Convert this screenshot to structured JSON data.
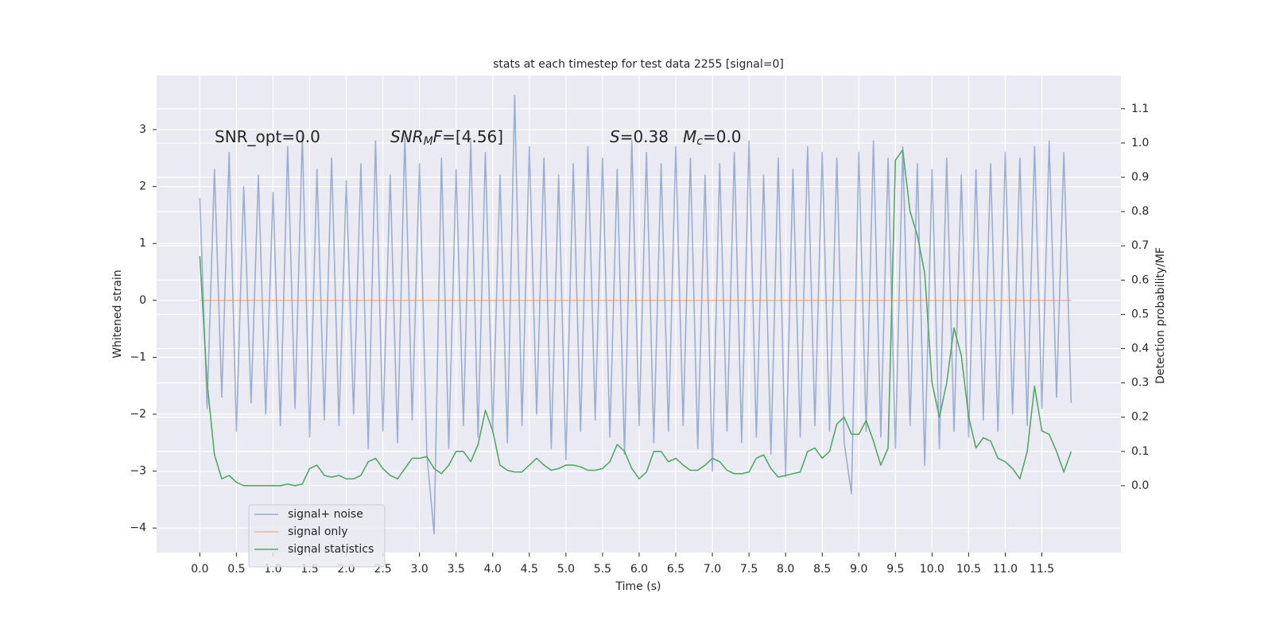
{
  "chart_data": {
    "type": "line",
    "title": "stats at each timestep for test data 2255 [signal=0]",
    "xlabel": "Time (s)",
    "ylabel": "Whitened strain",
    "y2label": "Detection probability/MF",
    "annotations": [
      [
        {
          "text": "SNR_opt=0.0"
        }
      ],
      [
        {
          "text": "SNR",
          "italic": true
        },
        {
          "text": "M",
          "italic": true,
          "sub": true
        },
        {
          "text": "F",
          "italic": true
        },
        {
          "text": "=[4.56]"
        }
      ],
      [
        {
          "text": "S",
          "italic": true
        },
        {
          "text": "=0.38"
        }
      ],
      [
        {
          "text": "M",
          "italic": true
        },
        {
          "text": "c",
          "italic": true,
          "sub": true
        },
        {
          "text": "=0.0"
        }
      ]
    ],
    "x": [
      0.0,
      0.1,
      0.2,
      0.3,
      0.4,
      0.5,
      0.6,
      0.7,
      0.8,
      0.9,
      1.0,
      1.1,
      1.2,
      1.3,
      1.4,
      1.5,
      1.6,
      1.7,
      1.8,
      1.9,
      2.0,
      2.1,
      2.2,
      2.3,
      2.4,
      2.5,
      2.6,
      2.7,
      2.8,
      2.9,
      3.0,
      3.1,
      3.2,
      3.3,
      3.4,
      3.5,
      3.6,
      3.7,
      3.8,
      3.9,
      4.0,
      4.1,
      4.2,
      4.3,
      4.4,
      4.5,
      4.6,
      4.7,
      4.8,
      4.9,
      5.0,
      5.1,
      5.2,
      5.3,
      5.4,
      5.5,
      5.6,
      5.7,
      5.8,
      5.9,
      6.0,
      6.1,
      6.2,
      6.3,
      6.4,
      6.5,
      6.6,
      6.7,
      6.8,
      6.9,
      7.0,
      7.1,
      7.2,
      7.3,
      7.4,
      7.5,
      7.6,
      7.7,
      7.8,
      7.9,
      8.0,
      8.1,
      8.2,
      8.3,
      8.4,
      8.5,
      8.6,
      8.7,
      8.8,
      8.9,
      9.0,
      9.1,
      9.2,
      9.3,
      9.4,
      9.5,
      9.6,
      9.7,
      9.8,
      9.9,
      10.0,
      10.1,
      10.2,
      10.3,
      10.4,
      10.5,
      10.6,
      10.7,
      10.8,
      10.9,
      11.0,
      11.1,
      11.2,
      11.3,
      11.4,
      11.5,
      11.6,
      11.7,
      11.8,
      11.9
    ],
    "series": [
      {
        "name": "signal+ noise",
        "color": "#4c72b0",
        "opacity": 0.5,
        "axis": "y",
        "values": [
          1.8,
          -1.9,
          2.3,
          -1.7,
          2.6,
          -2.3,
          2.0,
          -1.8,
          2.2,
          -2.0,
          1.9,
          -2.2,
          2.7,
          -1.9,
          2.9,
          -2.4,
          2.3,
          -2.1,
          2.5,
          -2.2,
          2.1,
          -2.0,
          2.4,
          -2.6,
          2.8,
          -2.3,
          2.2,
          -2.5,
          2.9,
          -2.1,
          2.4,
          -2.7,
          -4.1,
          2.5,
          -2.6,
          2.3,
          -2.2,
          2.8,
          -2.4,
          2.6,
          -2.3,
          2.2,
          -2.5,
          3.6,
          -2.2,
          2.7,
          -2.0,
          2.5,
          -2.6,
          2.2,
          -2.8,
          2.4,
          -2.3,
          2.7,
          -2.1,
          2.5,
          -2.4,
          2.3,
          -2.7,
          2.8,
          -2.2,
          2.6,
          -2.5,
          2.4,
          -2.3,
          2.7,
          -2.2,
          2.5,
          -2.6,
          2.2,
          -3.0,
          2.4,
          -2.3,
          2.6,
          -2.5,
          2.8,
          -2.4,
          2.2,
          -2.7,
          2.5,
          -3.1,
          2.3,
          -2.4,
          2.7,
          -2.2,
          2.6,
          -2.3,
          2.5,
          -2.5,
          -3.4,
          2.6,
          -2.3,
          2.8,
          -2.4,
          2.5,
          -2.6,
          2.7,
          -2.2,
          2.4,
          -2.9,
          2.3,
          -2.6,
          2.5,
          -2.3,
          2.2,
          -2.4,
          2.3,
          -2.1,
          2.4,
          -2.3,
          2.6,
          -2.0,
          2.5,
          -2.2,
          2.7,
          -1.9,
          2.8,
          -1.7,
          2.6,
          -1.8
        ]
      },
      {
        "name": "signal only",
        "color": "#dd8452",
        "opacity": 0.5,
        "axis": "y",
        "values": [
          0,
          0,
          0,
          0,
          0,
          0,
          0,
          0,
          0,
          0,
          0,
          0,
          0,
          0,
          0,
          0,
          0,
          0,
          0,
          0,
          0,
          0,
          0,
          0,
          0,
          0,
          0,
          0,
          0,
          0,
          0,
          0,
          0,
          0,
          0,
          0,
          0,
          0,
          0,
          0,
          0,
          0,
          0,
          0,
          0,
          0,
          0,
          0,
          0,
          0,
          0,
          0,
          0,
          0,
          0,
          0,
          0,
          0,
          0,
          0,
          0,
          0,
          0,
          0,
          0,
          0,
          0,
          0,
          0,
          0,
          0,
          0,
          0,
          0,
          0,
          0,
          0,
          0,
          0,
          0,
          0,
          0,
          0,
          0,
          0,
          0,
          0,
          0,
          0,
          0,
          0,
          0,
          0,
          0,
          0,
          0,
          0,
          0,
          0,
          0,
          0,
          0,
          0,
          0,
          0,
          0,
          0,
          0,
          0,
          0,
          0,
          0,
          0,
          0,
          0,
          0,
          0,
          0,
          0,
          0
        ]
      },
      {
        "name": "signal statistics",
        "color": "#55a868",
        "opacity": 1,
        "axis": "y2",
        "values": [
          0.67,
          0.3,
          0.09,
          0.02,
          0.03,
          0.01,
          0.0,
          0.0,
          0.0,
          0.0,
          0.0,
          0.0,
          0.005,
          0.0,
          0.005,
          0.05,
          0.06,
          0.03,
          0.025,
          0.03,
          0.02,
          0.02,
          0.03,
          0.07,
          0.08,
          0.05,
          0.03,
          0.02,
          0.05,
          0.08,
          0.08,
          0.085,
          0.05,
          0.035,
          0.06,
          0.1,
          0.1,
          0.07,
          0.12,
          0.22,
          0.16,
          0.06,
          0.045,
          0.04,
          0.04,
          0.06,
          0.08,
          0.06,
          0.045,
          0.05,
          0.06,
          0.06,
          0.055,
          0.045,
          0.045,
          0.05,
          0.07,
          0.12,
          0.1,
          0.05,
          0.02,
          0.04,
          0.1,
          0.1,
          0.07,
          0.08,
          0.06,
          0.045,
          0.045,
          0.06,
          0.08,
          0.07,
          0.045,
          0.035,
          0.035,
          0.04,
          0.08,
          0.09,
          0.05,
          0.025,
          0.03,
          0.035,
          0.04,
          0.1,
          0.11,
          0.08,
          0.1,
          0.18,
          0.2,
          0.15,
          0.15,
          0.19,
          0.13,
          0.06,
          0.11,
          0.95,
          0.98,
          0.8,
          0.73,
          0.62,
          0.3,
          0.2,
          0.3,
          0.46,
          0.38,
          0.2,
          0.11,
          0.14,
          0.13,
          0.08,
          0.07,
          0.05,
          0.02,
          0.1,
          0.29,
          0.16,
          0.15,
          0.1,
          0.04,
          0.1
        ]
      }
    ],
    "xlim": [
      -0.59,
      12.58
    ],
    "ylim": [
      -4.43,
      3.95
    ],
    "y2lim": [
      -0.195,
      1.197
    ],
    "xticks": [
      {
        "value": 0,
        "label": "0.0"
      },
      0.5,
      {
        "value": 1,
        "label": "1.0"
      },
      1.5,
      {
        "value": 2,
        "label": "2.0"
      },
      2.5,
      {
        "value": 3,
        "label": "3.0"
      },
      3.5,
      {
        "value": 4,
        "label": "4.0"
      },
      4.5,
      {
        "value": 5,
        "label": "5.0"
      },
      5.5,
      {
        "value": 6,
        "label": "6.0"
      },
      6.5,
      {
        "value": 7,
        "label": "7.0"
      },
      7.5,
      {
        "value": 8,
        "label": "8.0"
      },
      8.5,
      {
        "value": 9,
        "label": "9.0"
      },
      9.5,
      {
        "value": 10,
        "label": "10.0"
      },
      10.5,
      {
        "value": 11,
        "label": "11.0"
      },
      11.5
    ],
    "yticks": [
      {
        "value": -4,
        "label": "−4"
      },
      {
        "value": -3,
        "label": "−3"
      },
      {
        "value": -2,
        "label": "−2"
      },
      {
        "value": -1,
        "label": "−1"
      },
      0,
      1,
      2,
      3
    ],
    "y2ticks": [
      {
        "value": 0,
        "label": "0.0"
      },
      0.1,
      0.2,
      0.3,
      0.4,
      0.5,
      0.6,
      0.7,
      0.8,
      0.9,
      {
        "value": 1,
        "label": "1.0"
      },
      1.1
    ],
    "grid": true,
    "legend": "lower left"
  }
}
